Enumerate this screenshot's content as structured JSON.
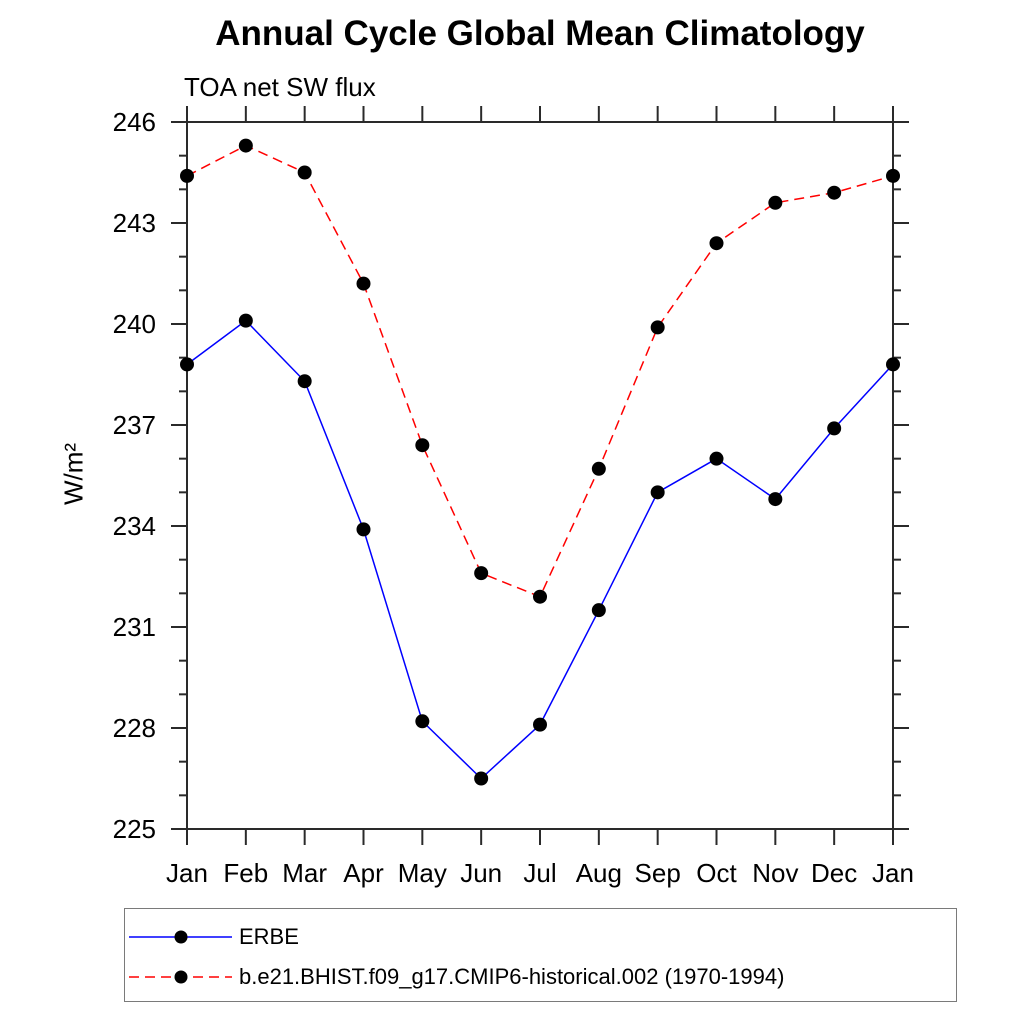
{
  "title": "Annual Cycle Global Mean Climatology",
  "subtitle": "TOA net SW flux",
  "chart_data": {
    "type": "line",
    "categories": [
      "Jan",
      "Feb",
      "Mar",
      "Apr",
      "May",
      "Jun",
      "Jul",
      "Aug",
      "Sep",
      "Oct",
      "Nov",
      "Dec",
      "Jan"
    ],
    "xlabel": "",
    "ylabel": "W/m²",
    "ylim": [
      225,
      246
    ],
    "ytick_major_step": 3,
    "ytick_minor_step": 1,
    "ytick_major_labels": [
      "225",
      "228",
      "231",
      "234",
      "237",
      "240",
      "243",
      "246"
    ],
    "grid": false,
    "legend_position": "bottom-left",
    "axis_color": "#2a2a2a",
    "series": [
      {
        "name": "ERBE",
        "color": "#0000ff",
        "line_style": "solid",
        "marker": "filled-circle",
        "marker_color": "#000000",
        "values": [
          238.8,
          240.1,
          238.3,
          233.9,
          228.2,
          226.5,
          228.1,
          231.5,
          235.0,
          236.0,
          234.8,
          236.9,
          238.8
        ]
      },
      {
        "name": "b.e21.BHIST.f09_g17.CMIP6-historical.002 (1970-1994)",
        "color": "#ff0000",
        "line_style": "dashed",
        "marker": "filled-circle",
        "marker_color": "#000000",
        "values": [
          244.4,
          245.3,
          244.5,
          241.2,
          236.4,
          232.6,
          231.9,
          235.7,
          239.9,
          242.4,
          243.6,
          243.9,
          244.4
        ]
      }
    ]
  }
}
